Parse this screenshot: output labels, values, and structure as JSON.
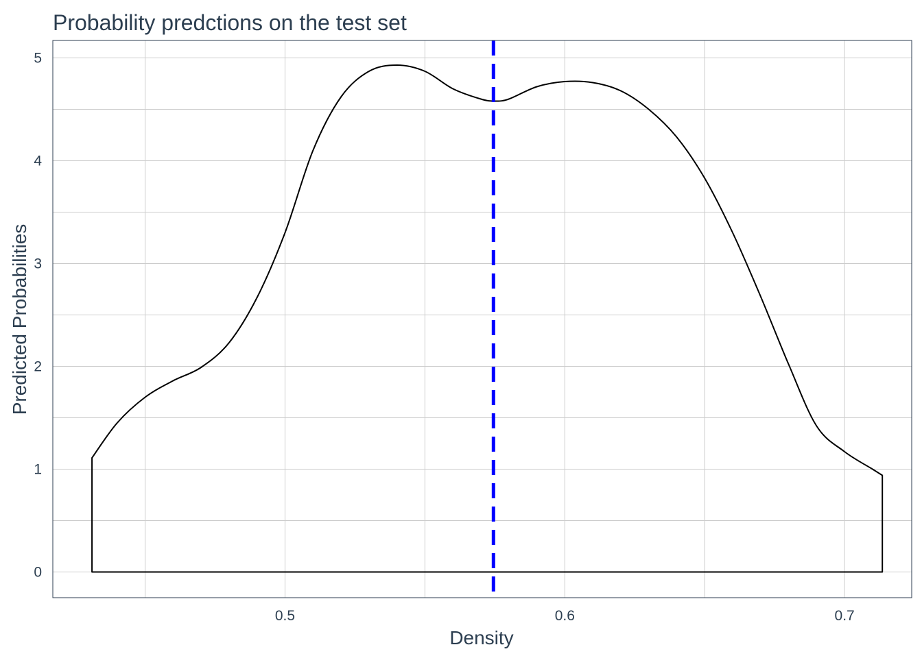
{
  "chart_data": {
    "type": "area",
    "title": "Probability predctions on the test set",
    "xlabel": "Density",
    "ylabel": "Predicted Probabilities",
    "xlim": [
      0.417,
      0.724
    ],
    "ylim": [
      -0.25,
      5.17
    ],
    "xticks": [
      0.5,
      0.6,
      0.7
    ],
    "xtick_labels": [
      "0.5",
      "0.6",
      "0.7"
    ],
    "yticks": [
      0,
      1,
      2,
      3,
      4,
      5
    ],
    "ytick_labels": [
      "0",
      "1",
      "2",
      "3",
      "4",
      "5"
    ],
    "grid": true,
    "series": [
      {
        "x": [
          0.431,
          0.44,
          0.45,
          0.46,
          0.47,
          0.48,
          0.49,
          0.5,
          0.51,
          0.52,
          0.53,
          0.54,
          0.55,
          0.56,
          0.57,
          0.575,
          0.58,
          0.59,
          0.6,
          0.61,
          0.62,
          0.63,
          0.64,
          0.65,
          0.66,
          0.67,
          0.68,
          0.69,
          0.7,
          0.71,
          0.7135
        ],
        "y": [
          1.11,
          1.45,
          1.7,
          1.86,
          1.99,
          2.23,
          2.67,
          3.3,
          4.1,
          4.62,
          4.87,
          4.93,
          4.87,
          4.7,
          4.6,
          4.58,
          4.6,
          4.72,
          4.77,
          4.76,
          4.68,
          4.5,
          4.23,
          3.83,
          3.3,
          2.68,
          2.02,
          1.42,
          1.17,
          1.0,
          0.94
        ]
      }
    ],
    "vline": {
      "x": 0.5745,
      "color": "#0000ff",
      "style": "dashed"
    }
  }
}
